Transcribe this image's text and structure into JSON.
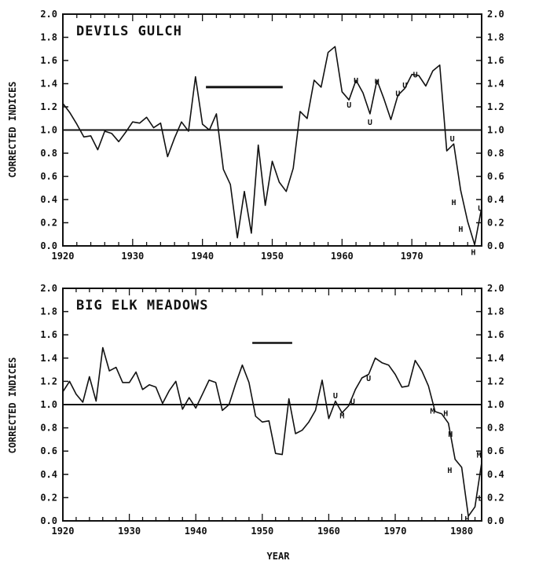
{
  "chart_data": [
    {
      "type": "line",
      "title": "DEVILS GULCH",
      "ylabel": "CORRECTED INDICES",
      "xlabel": "",
      "xlim": [
        1920,
        1980
      ],
      "ylim": [
        0.0,
        2.0
      ],
      "x_ticks": [
        "1920",
        "1930",
        "1940",
        "1950",
        "1960",
        "1970"
      ],
      "y_ticks": [
        "0.0",
        "0.2",
        "0.4",
        "0.6",
        "0.8",
        "1.0",
        "1.2",
        "1.4",
        "1.6",
        "1.8",
        "2.0"
      ],
      "reference_line": 1.0,
      "bar_segment": {
        "x_start": 1940.5,
        "x_end": 1951.5,
        "y": 1.37
      },
      "series": [
        {
          "x": [
            1920,
            1921,
            1922,
            1923,
            1924,
            1925,
            1926,
            1927,
            1928,
            1929,
            1930,
            1931,
            1932,
            1933,
            1934,
            1935,
            1936,
            1937,
            1938,
            1939,
            1940,
            1941,
            1942,
            1943,
            1944,
            1945,
            1946,
            1947,
            1948,
            1949,
            1950,
            1951,
            1952,
            1953,
            1954,
            1955,
            1956,
            1957,
            1958,
            1959,
            1960,
            1961,
            1962,
            1963,
            1964,
            1965,
            1966,
            1967,
            1968,
            1969,
            1970,
            1971,
            1972,
            1973,
            1974,
            1975,
            1976,
            1977,
            1978,
            1979,
            1980
          ],
          "y": [
            1.23,
            1.15,
            1.05,
            0.94,
            0.95,
            0.83,
            0.99,
            0.97,
            0.9,
            0.98,
            1.07,
            1.06,
            1.11,
            1.02,
            1.06,
            0.77,
            0.93,
            1.07,
            0.99,
            1.46,
            1.05,
            1.0,
            1.14,
            0.66,
            0.53,
            0.07,
            0.47,
            0.11,
            0.87,
            0.35,
            0.73,
            0.55,
            0.47,
            0.67,
            1.16,
            1.1,
            1.43,
            1.37,
            1.67,
            1.72,
            1.33,
            1.26,
            1.43,
            1.32,
            1.14,
            1.43,
            1.27,
            1.09,
            1.3,
            1.36,
            1.48,
            1.47,
            1.38,
            1.51,
            1.56,
            0.82,
            0.88,
            0.48,
            0.21,
            0.01,
            0.33
          ]
        }
      ],
      "annotations": [
        {
          "text": "U",
          "x": 1962,
          "y": 1.43
        },
        {
          "text": "U",
          "x": 1961,
          "y": 1.22
        },
        {
          "text": "U",
          "x": 1965,
          "y": 1.42
        },
        {
          "text": "U",
          "x": 1964,
          "y": 1.07
        },
        {
          "text": "U",
          "x": 1968,
          "y": 1.32
        },
        {
          "text": "U",
          "x": 1969,
          "y": 1.39
        },
        {
          "text": "U",
          "x": 1970.5,
          "y": 1.48
        },
        {
          "text": "U",
          "x": 1975.8,
          "y": 0.93
        },
        {
          "text": "H",
          "x": 1976,
          "y": 0.38
        },
        {
          "text": "H",
          "x": 1977,
          "y": 0.15
        },
        {
          "text": "H",
          "x": 1978.8,
          "y": -0.05
        },
        {
          "text": "U",
          "x": 1979.8,
          "y": 0.33
        }
      ]
    },
    {
      "type": "line",
      "title": "BIG ELK MEADOWS",
      "ylabel": "CORRECTED INDICES",
      "xlabel": "YEAR",
      "xlim": [
        1920,
        1983
      ],
      "ylim": [
        0.0,
        2.0
      ],
      "x_ticks": [
        "1920",
        "1930",
        "1940",
        "1950",
        "1960",
        "1970",
        "1980"
      ],
      "y_ticks": [
        "0.0",
        "0.2",
        "0.4",
        "0.6",
        "0.8",
        "1.0",
        "1.2",
        "1.4",
        "1.6",
        "1.8",
        "2.0"
      ],
      "reference_line": 1.0,
      "bar_segment": {
        "x_start": 1948.5,
        "x_end": 1954.5,
        "y": 1.53
      },
      "series": [
        {
          "x": [
            1920,
            1921,
            1922,
            1923,
            1924,
            1925,
            1926,
            1927,
            1928,
            1929,
            1930,
            1931,
            1932,
            1933,
            1934,
            1935,
            1936,
            1937,
            1938,
            1939,
            1940,
            1941,
            1942,
            1943,
            1944,
            1945,
            1946,
            1947,
            1948,
            1949,
            1950,
            1951,
            1952,
            1953,
            1954,
            1955,
            1956,
            1957,
            1958,
            1959,
            1960,
            1961,
            1962,
            1963,
            1964,
            1965,
            1966,
            1967,
            1968,
            1969,
            1970,
            1971,
            1972,
            1973,
            1974,
            1975,
            1976,
            1977,
            1978,
            1979,
            1980,
            1981,
            1982,
            1983
          ],
          "y": [
            1.11,
            1.2,
            1.09,
            1.02,
            1.24,
            1.03,
            1.49,
            1.29,
            1.32,
            1.19,
            1.19,
            1.28,
            1.13,
            1.17,
            1.15,
            1.01,
            1.12,
            1.2,
            0.96,
            1.06,
            0.97,
            1.09,
            1.21,
            1.19,
            0.95,
            1.0,
            1.18,
            1.34,
            1.19,
            0.9,
            0.85,
            0.86,
            0.58,
            0.57,
            1.05,
            0.75,
            0.78,
            0.85,
            0.95,
            1.21,
            0.88,
            1.03,
            0.93,
            0.99,
            1.13,
            1.23,
            1.26,
            1.4,
            1.36,
            1.34,
            1.26,
            1.15,
            1.16,
            1.38,
            1.29,
            1.16,
            0.94,
            0.92,
            0.84,
            0.53,
            0.46,
            0.04,
            0.12,
            0.5
          ]
        }
      ],
      "annotations": [
        {
          "text": "U",
          "x": 1961,
          "y": 1.08
        },
        {
          "text": "M",
          "x": 1962,
          "y": 0.91
        },
        {
          "text": "U",
          "x": 1963.6,
          "y": 1.03
        },
        {
          "text": "U",
          "x": 1966,
          "y": 1.23
        },
        {
          "text": "M",
          "x": 1975.6,
          "y": 0.95
        },
        {
          "text": "H",
          "x": 1977.6,
          "y": 0.93
        },
        {
          "text": "H",
          "x": 1978.3,
          "y": 0.75
        },
        {
          "text": "H",
          "x": 1978.2,
          "y": 0.44
        },
        {
          "text": "H",
          "x": 1980.8,
          "y": 0.02
        },
        {
          "text": "L",
          "x": 1982.8,
          "y": 0.2
        },
        {
          "text": "M",
          "x": 1982.6,
          "y": 0.57
        }
      ]
    }
  ]
}
